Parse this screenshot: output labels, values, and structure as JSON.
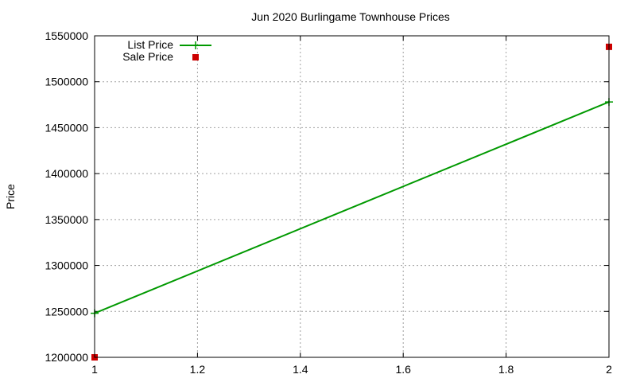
{
  "chart_data": {
    "type": "line",
    "title": "Jun 2020 Burlingame Townhouse Prices",
    "xlabel": "",
    "ylabel": "Price",
    "xlim": [
      1,
      2
    ],
    "ylim": [
      1200000,
      1550000
    ],
    "x_ticks": [
      "1",
      "1.2",
      "1.4",
      "1.6",
      "1.8",
      "2"
    ],
    "y_ticks": [
      "1200000",
      "1250000",
      "1300000",
      "1350000",
      "1400000",
      "1450000",
      "1500000",
      "1550000"
    ],
    "grid": true,
    "legend_position": "top-left",
    "series": [
      {
        "name": "List Price",
        "style": "line-with-plus-markers",
        "color": "#009900",
        "x": [
          1,
          2
        ],
        "y": [
          1248000,
          1478000
        ]
      },
      {
        "name": "Sale Price",
        "style": "square-markers",
        "color": "#cc0000",
        "x": [
          1,
          2
        ],
        "y": [
          1200000,
          1538000
        ]
      }
    ]
  }
}
